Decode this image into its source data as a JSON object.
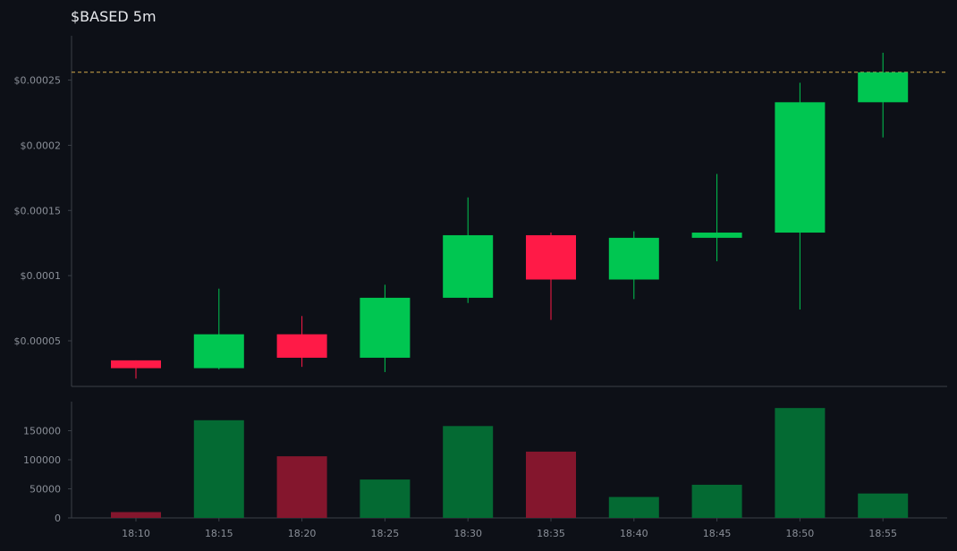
{
  "chart_data": {
    "type": "candlestick",
    "title": "$BASED 5m",
    "categories": [
      "18:10",
      "18:15",
      "18:20",
      "18:25",
      "18:30",
      "18:35",
      "18:40",
      "18:45",
      "18:50",
      "18:55"
    ],
    "ohlc": [
      {
        "open": 3.5e-05,
        "high": 3.5e-05,
        "low": 2.1e-05,
        "close": 2.9e-05
      },
      {
        "open": 2.9e-05,
        "high": 9e-05,
        "low": 2.8e-05,
        "close": 5.5e-05
      },
      {
        "open": 5.5e-05,
        "high": 6.9e-05,
        "low": 3e-05,
        "close": 3.7e-05
      },
      {
        "open": 3.7e-05,
        "high": 9.3e-05,
        "low": 2.6e-05,
        "close": 8.3e-05
      },
      {
        "open": 8.3e-05,
        "high": 0.00016,
        "low": 7.9e-05,
        "close": 0.000131
      },
      {
        "open": 0.000131,
        "high": 0.000133,
        "low": 6.6e-05,
        "close": 9.7e-05
      },
      {
        "open": 9.7e-05,
        "high": 0.000134,
        "low": 8.2e-05,
        "close": 0.000129
      },
      {
        "open": 0.000129,
        "high": 0.000178,
        "low": 0.000111,
        "close": 0.000133
      },
      {
        "open": 0.000133,
        "high": 0.000248,
        "low": 7.4e-05,
        "close": 0.000233
      },
      {
        "open": 0.000233,
        "high": 0.000271,
        "low": 0.000206,
        "close": 0.000256
      }
    ],
    "volume": [
      10000,
      168000,
      106000,
      66000,
      158000,
      114000,
      36000,
      57000,
      189000,
      42000
    ],
    "current_price": 0.000256,
    "price_ylim": [
      1.5e-05,
      0.000284
    ],
    "price_ticks": [
      {
        "value": 5e-05,
        "label": "$0.00005"
      },
      {
        "value": 0.0001,
        "label": "$0.0001"
      },
      {
        "value": 0.00015,
        "label": "$0.00015"
      },
      {
        "value": 0.0002,
        "label": "$0.0002"
      },
      {
        "value": 0.00025,
        "label": "$0.00025"
      }
    ],
    "volume_ylim": [
      0,
      200000
    ],
    "volume_ticks": [
      {
        "value": 0,
        "label": "0"
      },
      {
        "value": 50000,
        "label": "50000"
      },
      {
        "value": 100000,
        "label": "100000"
      },
      {
        "value": 150000,
        "label": "150000"
      }
    ],
    "grid": false,
    "colors": {
      "background": "#0d1017",
      "up": "#00c651",
      "down": "#ff1a47",
      "volume_up": "#046a33",
      "volume_down": "#84162d",
      "price_line": "#d4a94a",
      "axis": "#3a3f47",
      "tick_text": "#8a8f98",
      "title_text": "#e6e8ec"
    }
  }
}
